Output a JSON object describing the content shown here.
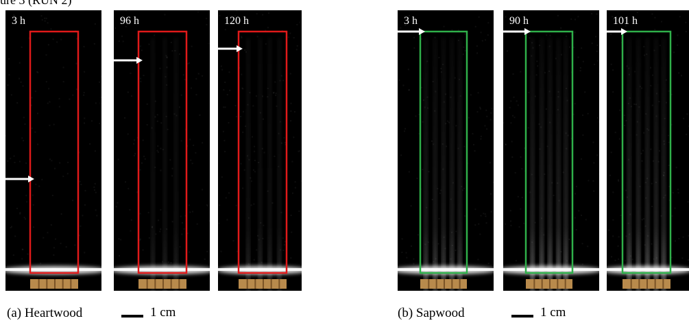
{
  "top_fragment": "ure 3 (RUN 2)",
  "groups": [
    {
      "caption": "(a) Heartwood",
      "scale_label": "1 cm",
      "frame_color": "#e01a1a",
      "panels": [
        {
          "time_label": "3 h"
        },
        {
          "time_label": "96 h"
        },
        {
          "time_label": "120 h"
        }
      ]
    },
    {
      "caption": "(b) Sapwood",
      "scale_label": "1 cm",
      "frame_color": "#2fb04a",
      "panels": [
        {
          "time_label": "3 h"
        },
        {
          "time_label": "90 h"
        },
        {
          "time_label": "101 h"
        }
      ]
    }
  ]
}
